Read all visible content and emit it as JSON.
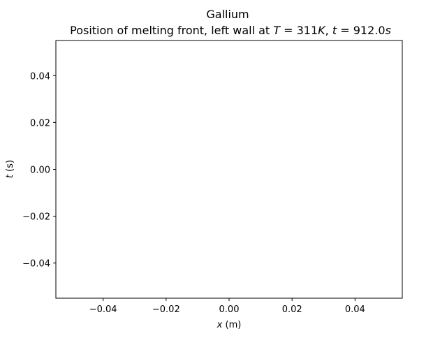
{
  "chart_data": {
    "type": "line",
    "title": "Gallium",
    "subtitle_parts": {
      "prefix": "Position of melting front, left wall at ",
      "T_symbol": "T",
      "T_value": " = 311",
      "T_unit": "K",
      "separator": ", ",
      "t_symbol": "t",
      "t_value": " = 912.0",
      "t_unit": "s"
    },
    "xlabel": {
      "symbol": "x",
      "unit": " (m)"
    },
    "ylabel": {
      "symbol": "t",
      "unit": " (s)"
    },
    "xlim": [
      -0.055,
      0.055
    ],
    "ylim": [
      -0.055,
      0.055
    ],
    "x_ticks": [
      {
        "value": -0.04,
        "label": "−0.04"
      },
      {
        "value": -0.02,
        "label": "−0.02"
      },
      {
        "value": 0.0,
        "label": "0.00"
      },
      {
        "value": 0.02,
        "label": "0.02"
      },
      {
        "value": 0.04,
        "label": "0.04"
      }
    ],
    "y_ticks": [
      {
        "value": 0.04,
        "label": "0.04"
      },
      {
        "value": 0.02,
        "label": "0.02"
      },
      {
        "value": 0.0,
        "label": "0.00"
      },
      {
        "value": -0.02,
        "label": "−0.02"
      },
      {
        "value": -0.04,
        "label": "−0.04"
      }
    ],
    "series": [],
    "grid": false,
    "legend": "none"
  }
}
